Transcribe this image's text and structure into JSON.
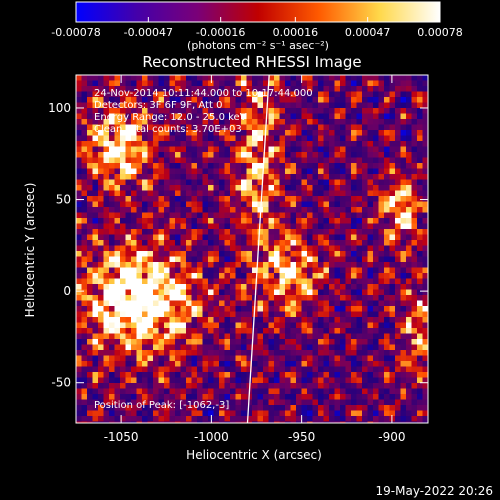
{
  "colorbar": {
    "tick_labels": [
      "-0.00078",
      "-0.00047",
      "-0.00016",
      "0.00016",
      "0.00047",
      "0.00078"
    ],
    "tick_values": [
      -0.00078,
      -0.00047,
      -0.00016,
      0.00016,
      0.00047,
      0.00078
    ],
    "units_label": "(photons cm⁻² s⁻¹ asec⁻²)",
    "range": [
      -0.00078,
      0.00078
    ],
    "colors": [
      "#0000ff",
      "#4400aa",
      "#7a0078",
      "#c00000",
      "#ff5a00",
      "#ffd84a",
      "#ffffff"
    ]
  },
  "annotations": {
    "time_range": "24-Nov-2014 10:11:44.000 to 10:17:44.000",
    "detectors": "Detectors: 3F 6F 9F, Att 0",
    "energy": "Energy Range: 12.0 - 25.0 keV",
    "clean": "Clean     Total counts: 3.70E+03",
    "peak": "Position of Peak: [-1062,-3]"
  },
  "footer": {
    "date": "19-May-2022 20:26"
  },
  "chart_data": {
    "type": "heatmap",
    "title": "Reconstructed RHESSI Image",
    "xlabel": "Heliocentric X (arcsec)",
    "ylabel": "Heliocentric Y (arcsec)",
    "xlim": [
      -1075,
      -880
    ],
    "ylim": [
      -72,
      118
    ],
    "x_ticks": [
      -1050,
      -1000,
      -950,
      -900
    ],
    "x_tick_labels": [
      "-1050",
      "-1000",
      "-950",
      "-900"
    ],
    "y_ticks": [
      -50,
      0,
      50,
      100
    ],
    "y_tick_labels": [
      "-50",
      "0",
      "50",
      "100"
    ],
    "peak_position": [
      -1062,
      -3
    ],
    "limb_x": [
      -980,
      -968
    ],
    "limb_y": [
      -72,
      118
    ],
    "bright_regions": [
      {
        "x": -1040,
        "y": -5,
        "sx": 22,
        "sy": 20,
        "amp": 1.0
      },
      {
        "x": -1050,
        "y": 80,
        "sx": 14,
        "sy": 16,
        "amp": 0.75
      },
      {
        "x": -975,
        "y": 70,
        "sx": 9,
        "sy": 35,
        "amp": 0.6
      },
      {
        "x": -955,
        "y": 10,
        "sx": 12,
        "sy": 15,
        "amp": 0.65
      },
      {
        "x": -895,
        "y": 45,
        "sx": 8,
        "sy": 12,
        "amp": 0.7
      },
      {
        "x": -885,
        "y": -20,
        "sx": 8,
        "sy": 18,
        "amp": 0.45
      }
    ]
  }
}
